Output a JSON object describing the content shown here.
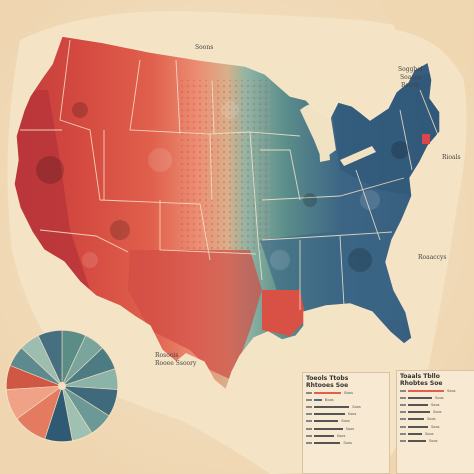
{
  "labels": {
    "north_central": "Soons",
    "northeast_top": [
      "Soggbel",
      "Soaacs",
      "Rssob"
    ],
    "east_mid": "Rioals",
    "east_lower": "Roaaccys",
    "southwest": [
      "Rosoois",
      "Rooee Ssoory"
    ]
  },
  "legend_left": {
    "title_lines": [
      "Toeols Ttobs",
      "Rhtooes Soe"
    ],
    "rows": [
      {
        "label": "Boos",
        "fraction": 0.62,
        "color": "#e0604c"
      },
      {
        "label": "Boos",
        "fraction": 0.18,
        "color": "#4a6b8c"
      },
      {
        "label": "Soos",
        "fraction": 0.8,
        "color": "#555555"
      },
      {
        "label": "Soos",
        "fraction": 0.7,
        "color": "#555555"
      },
      {
        "label": "Soos",
        "fraction": 0.55,
        "color": "#555555"
      },
      {
        "label": "Soos",
        "fraction": 0.65,
        "color": "#555555"
      },
      {
        "label": "Soos",
        "fraction": 0.45,
        "color": "#555555"
      },
      {
        "label": "Soos",
        "fraction": 0.6,
        "color": "#555555"
      }
    ]
  },
  "legend_right": {
    "title_lines": [
      "Toaals Tbllo",
      "Rhobtes Soe"
    ],
    "rows": [
      {
        "label": "Soos",
        "fraction": 0.9,
        "color": "#e0604c"
      },
      {
        "label": "Soos",
        "fraction": 0.6,
        "color": "#555555"
      },
      {
        "label": "Soos",
        "fraction": 0.5,
        "color": "#555555"
      },
      {
        "label": "Soos",
        "fraction": 0.55,
        "color": "#555555"
      },
      {
        "label": "Soos",
        "fraction": 0.4,
        "color": "#555555"
      },
      {
        "label": "Soos",
        "fraction": 0.5,
        "color": "#555555"
      },
      {
        "label": "Soos",
        "fraction": 0.35,
        "color": "#555555"
      },
      {
        "label": "Soos",
        "fraction": 0.45,
        "color": "#555555"
      }
    ]
  },
  "pie": {
    "slices": [
      {
        "share": 0.07,
        "color": "#5a8d86"
      },
      {
        "share": 0.06,
        "color": "#79a59d"
      },
      {
        "share": 0.07,
        "color": "#4d7b84"
      },
      {
        "share": 0.06,
        "color": "#8cb3a8"
      },
      {
        "share": 0.08,
        "color": "#3f6a7c"
      },
      {
        "share": 0.07,
        "color": "#6b9995"
      },
      {
        "share": 0.06,
        "color": "#a0c1b2"
      },
      {
        "share": 0.08,
        "color": "#2f5a73"
      },
      {
        "share": 0.1,
        "color": "#e47b61"
      },
      {
        "share": 0.09,
        "color": "#f0a286"
      },
      {
        "share": 0.07,
        "color": "#cf5743"
      },
      {
        "share": 0.06,
        "color": "#5c8a8e"
      },
      {
        "share": 0.06,
        "color": "#9dbdb1"
      },
      {
        "share": 0.07,
        "color": "#466f80"
      }
    ]
  },
  "colors": {
    "background": "#f3dfc1",
    "land": "#efe1c2",
    "red_dark": "#c0393a",
    "red": "#d8574a",
    "red_light": "#ec8f74",
    "teal": "#5c8e8a",
    "teal_light": "#8fb5a6",
    "blue": "#3c6585",
    "blue_dark": "#2b4e6c"
  }
}
